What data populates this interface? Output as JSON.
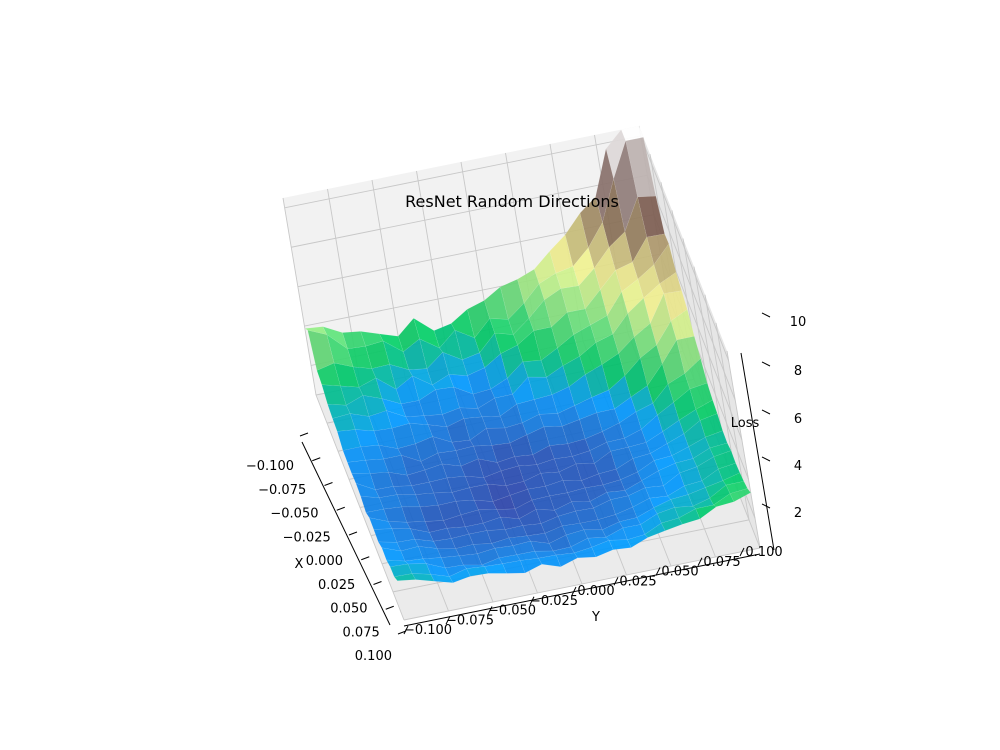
{
  "chart_data": {
    "type": "surface3d",
    "title": "ResNet Random Directions",
    "xlabel": "X",
    "ylabel": "Y",
    "zlabel": "Loss",
    "xlim": [
      -0.1,
      0.1
    ],
    "ylim": [
      -0.1,
      0.1
    ],
    "zlim": [
      0.5,
      10.5
    ],
    "x_ticks": [
      "−0.100",
      "−0.075",
      "−0.050",
      "−0.025",
      "0.000",
      "0.025",
      "0.050",
      "0.075",
      "0.100"
    ],
    "y_ticks": [
      "−0.100",
      "−0.075",
      "−0.050",
      "−0.025",
      "0.000",
      "0.025",
      "0.050",
      "0.075",
      "0.100"
    ],
    "z_ticks": [
      "2",
      "4",
      "6",
      "8",
      "10"
    ],
    "grid": true,
    "colormap": "terrain",
    "grid_size": 21,
    "x": [
      -0.1,
      -0.09,
      -0.08,
      -0.07,
      -0.06,
      -0.05,
      -0.04,
      -0.03,
      -0.02,
      -0.01,
      0.0,
      0.01,
      0.02,
      0.03,
      0.04,
      0.05,
      0.06,
      0.07,
      0.08,
      0.09,
      0.1
    ],
    "y": [
      -0.1,
      -0.09,
      -0.08,
      -0.07,
      -0.06,
      -0.05,
      -0.04,
      -0.03,
      -0.02,
      -0.01,
      0.0,
      0.01,
      0.02,
      0.03,
      0.04,
      0.05,
      0.06,
      0.07,
      0.08,
      0.09,
      0.1
    ],
    "loss_summary": {
      "corner_x_-0.100_y_-0.100": 3.2,
      "corner_x_0.100_y_-0.100": 2.2,
      "corner_x_0.100_y_0.100": 3.9,
      "corner_x_-0.100_y_0.100": 10.0,
      "minimum_near_x_0.02_y_-0.02": 0.8
    }
  }
}
